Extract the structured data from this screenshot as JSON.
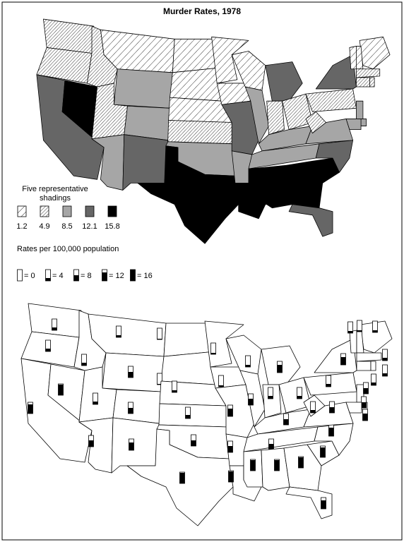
{
  "title": "Murder Rates, 1978",
  "shading_legend": {
    "title": "Five representative shadings",
    "values": [
      1.2,
      4.9,
      8.5,
      12.1,
      15.8
    ]
  },
  "glyph_legend": {
    "title": "Rates per 100,000 population",
    "max": 16,
    "items": [
      {
        "value": 0,
        "label": "= 0"
      },
      {
        "value": 4,
        "label": "= 4"
      },
      {
        "value": 8,
        "label": "= 8"
      },
      {
        "value": 12,
        "label": "= 12"
      },
      {
        "value": 16,
        "label": "= 16"
      }
    ]
  },
  "state_rates": [
    4,
    4,
    13,
    15,
    4,
    3,
    8,
    4,
    8,
    9,
    11,
    1,
    1,
    3,
    5,
    8,
    15,
    2,
    2,
    11,
    9,
    15,
    3,
    9,
    11,
    4,
    4,
    8,
    9,
    15,
    15,
    15,
    12,
    14,
    12,
    8,
    4,
    4,
    11,
    3,
    3,
    2,
    4,
    4,
    4,
    8,
    8,
    10
  ]
}
